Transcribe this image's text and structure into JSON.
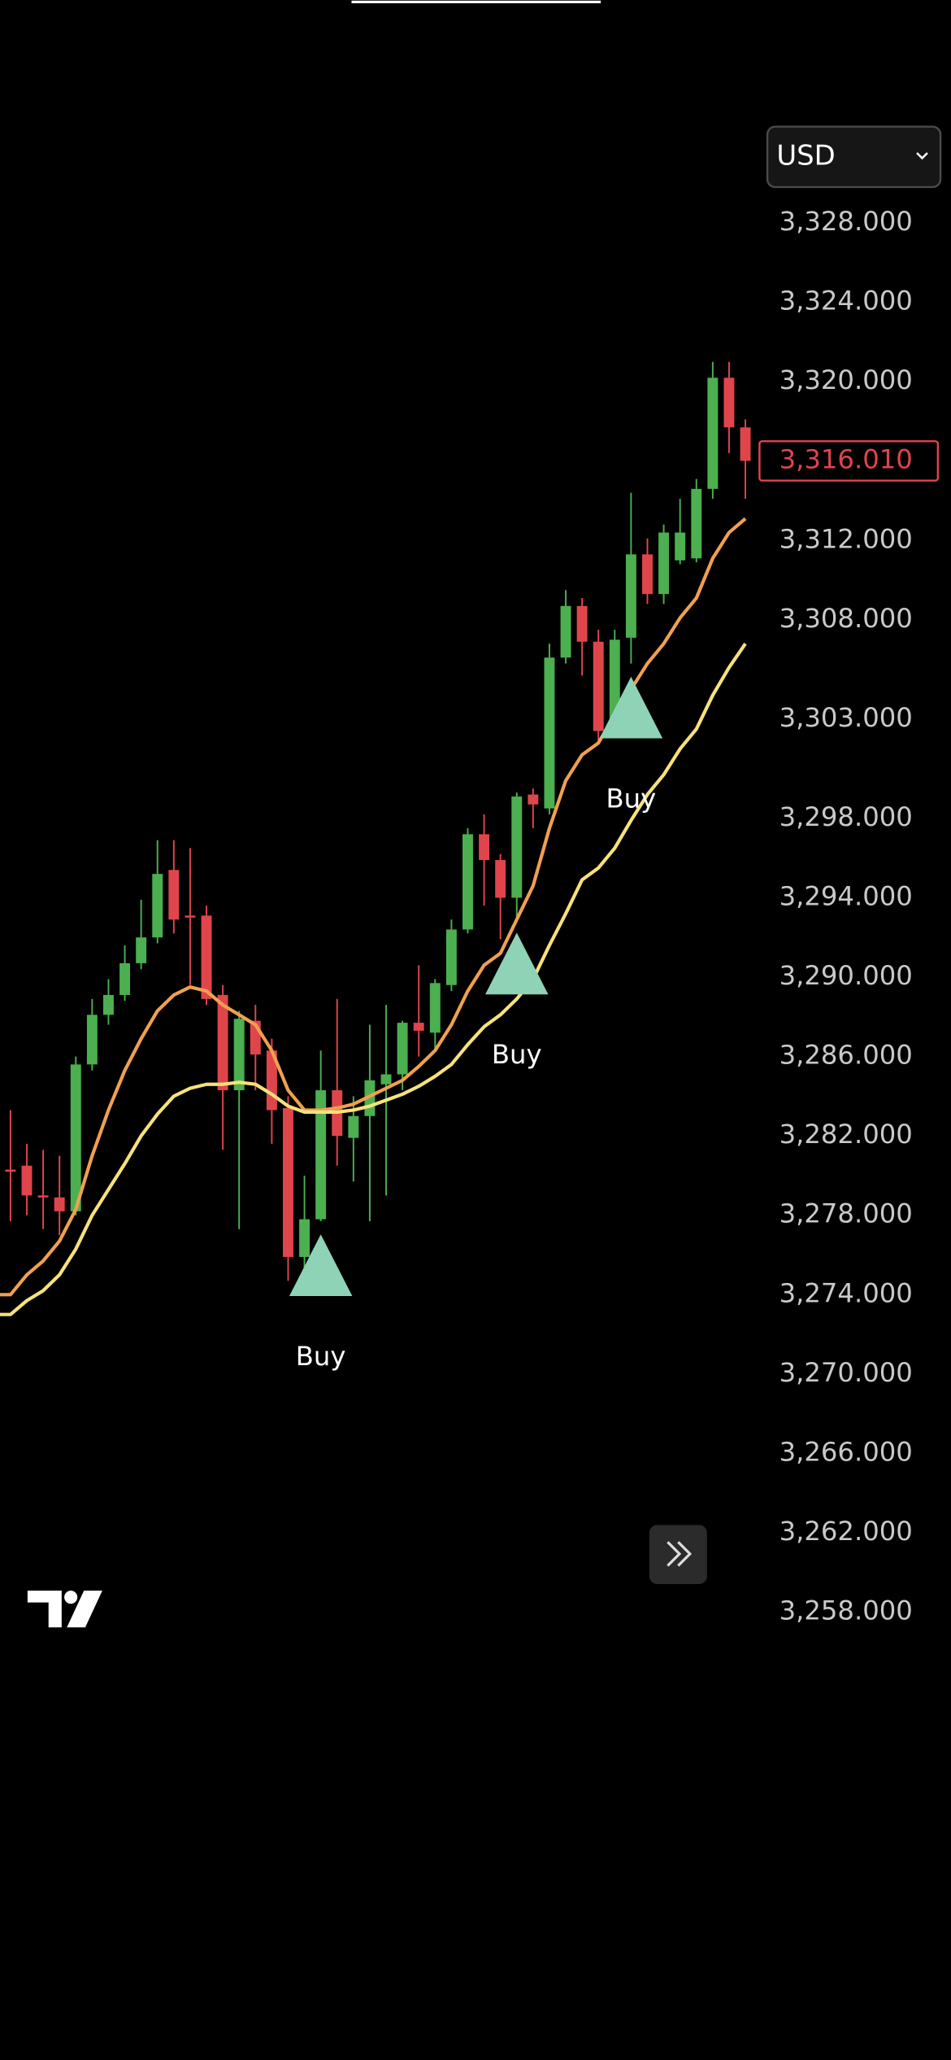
{
  "chart_data": {
    "type": "candlestick",
    "currency": "USD",
    "open": [
      3280.3,
      3280.5,
      3279.0,
      3278.9,
      3278.2,
      3285.6,
      3288.1,
      3289.1,
      3290.7,
      3292.0,
      3295.4,
      3293.1,
      3293.1,
      3289.1,
      3284.3,
      3287.8,
      3286.3,
      3283.4,
      3275.9,
      3277.8,
      3284.3,
      3281.9,
      3283.0,
      3284.6,
      3285.1,
      3287.7,
      3287.2,
      3289.6,
      3292.4,
      3297.2,
      3295.9,
      3294.0,
      3299.2,
      3298.5,
      3306.1,
      3308.7,
      3306.9,
      3302.8,
      3307.1,
      3311.3,
      3309.3,
      3311.0,
      3311.1,
      3314.6,
      3320.2,
      3317.7
    ],
    "high": [
      3283.3,
      3281.6,
      3281.3,
      3281.0,
      3286.0,
      3288.9,
      3289.9,
      3291.6,
      3293.9,
      3296.9,
      3296.9,
      3296.5,
      3293.6,
      3289.6,
      3288.3,
      3288.6,
      3286.9,
      3284.0,
      3280.0,
      3286.3,
      3288.9,
      3284.0,
      3287.6,
      3288.6,
      3287.8,
      3290.6,
      3289.9,
      3292.9,
      3297.5,
      3298.2,
      3296.2,
      3299.3,
      3299.5,
      3306.8,
      3309.5,
      3309.1,
      3307.5,
      3307.5,
      3314.4,
      3312.1,
      3312.8,
      3314.1,
      3315.1,
      3321.0,
      3321.0,
      3318.1
    ],
    "low": [
      3277.7,
      3278.0,
      3277.3,
      3277.0,
      3278.0,
      3285.3,
      3287.6,
      3288.8,
      3290.4,
      3291.7,
      3292.2,
      3289.6,
      3288.6,
      3281.3,
      3277.3,
      3284.3,
      3281.6,
      3274.7,
      3274.7,
      3277.7,
      3280.5,
      3279.7,
      3277.7,
      3279.0,
      3284.3,
      3286.0,
      3286.3,
      3289.3,
      3292.2,
      3293.6,
      3291.9,
      3292.9,
      3297.5,
      3298.2,
      3305.8,
      3305.2,
      3301.8,
      3302.5,
      3305.8,
      3308.8,
      3308.8,
      3310.8,
      3310.9,
      3314.1,
      3316.4,
      3314.1
    ],
    "close": [
      3280.2,
      3279.0,
      3278.9,
      3278.2,
      3285.6,
      3288.1,
      3289.1,
      3290.7,
      3292.0,
      3295.2,
      3292.9,
      3293.0,
      3288.9,
      3284.3,
      3287.9,
      3286.1,
      3283.3,
      3275.9,
      3277.8,
      3284.3,
      3282.0,
      3283.0,
      3284.8,
      3285.1,
      3287.7,
      3287.3,
      3289.7,
      3292.4,
      3297.2,
      3295.9,
      3294.0,
      3299.1,
      3298.7,
      3306.1,
      3308.7,
      3306.9,
      3302.4,
      3307.0,
      3311.3,
      3309.3,
      3312.4,
      3312.4,
      3314.6,
      3320.2,
      3317.7,
      3316.01
    ],
    "up_color": "#4caf50",
    "down_color": "#e0454c",
    "series": [
      {
        "color": "#f0a050",
        "values": [
          3274.0,
          3275.0,
          3275.7,
          3276.7,
          3278.3,
          3281.0,
          3283.3,
          3285.3,
          3286.9,
          3288.3,
          3289.1,
          3289.5,
          3289.3,
          3288.6,
          3288.1,
          3287.6,
          3286.3,
          3284.3,
          3283.3,
          3283.3,
          3283.4,
          3283.6,
          3284.0,
          3284.4,
          3284.8,
          3285.5,
          3286.3,
          3287.6,
          3289.3,
          3290.6,
          3291.2,
          3292.9,
          3294.6,
          3297.5,
          3299.9,
          3301.2,
          3301.8,
          3303.2,
          3304.5,
          3305.8,
          3306.8,
          3308.1,
          3309.1,
          3311.1,
          3312.4,
          3313.1
        ]
      },
      {
        "color": "#f7e27a",
        "values": [
          3273.0,
          3273.7,
          3274.2,
          3275.0,
          3276.3,
          3278.0,
          3279.3,
          3280.6,
          3282.0,
          3283.1,
          3284.0,
          3284.4,
          3284.6,
          3284.6,
          3284.7,
          3284.6,
          3284.1,
          3283.5,
          3283.2,
          3283.2,
          3283.2,
          3283.3,
          3283.5,
          3283.8,
          3284.1,
          3284.5,
          3285.0,
          3285.6,
          3286.6,
          3287.5,
          3288.1,
          3288.9,
          3289.9,
          3291.6,
          3293.2,
          3294.9,
          3295.5,
          3296.5,
          3297.9,
          3299.2,
          3300.2,
          3301.5,
          3302.5,
          3304.2,
          3305.6,
          3306.8
        ]
      }
    ],
    "signals": [
      {
        "label": "Buy",
        "index": 19,
        "color": "#8fd3b6"
      },
      {
        "label": "Buy",
        "index": 31,
        "color": "#8fd3b6"
      },
      {
        "label": "Buy",
        "index": 38,
        "color": "#8fd3b6"
      }
    ],
    "last_price": {
      "value": 3316.01,
      "label": "3,316.010"
    },
    "ylim": [
      3253.2,
      3339.2
    ],
    "yticks": [
      {
        "value": 3328,
        "label": "3,328.000"
      },
      {
        "value": 3324,
        "label": "3,324.000"
      },
      {
        "value": 3320,
        "label": "3,320.000"
      },
      {
        "value": 3312,
        "label": "3,312.000"
      },
      {
        "value": 3308,
        "label": "3,308.000"
      },
      {
        "value": 3303,
        "label": "3,303.000"
      },
      {
        "value": 3298,
        "label": "3,298.000"
      },
      {
        "value": 3294,
        "label": "3,294.000"
      },
      {
        "value": 3290,
        "label": "3,290.000"
      },
      {
        "value": 3286,
        "label": "3,286.000"
      },
      {
        "value": 3282,
        "label": "3,282.000"
      },
      {
        "value": 3278,
        "label": "3,278.000"
      },
      {
        "value": 3274,
        "label": "3,274.000"
      },
      {
        "value": 3270,
        "label": "3,270.000"
      },
      {
        "value": 3266,
        "label": "3,266.000"
      },
      {
        "value": 3262,
        "label": "3,262.000"
      },
      {
        "value": 3258,
        "label": "3,258.000"
      }
    ],
    "grid": false
  }
}
